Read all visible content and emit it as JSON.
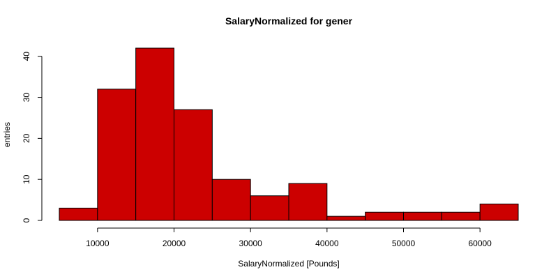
{
  "chart_data": {
    "type": "bar",
    "title": "SalaryNormalized for gener",
    "xlabel": "SalaryNormalized [Pounds]",
    "ylabel": "entries",
    "bins": [
      {
        "start": 5000,
        "end": 10000,
        "count": 3
      },
      {
        "start": 10000,
        "end": 15000,
        "count": 32
      },
      {
        "start": 15000,
        "end": 20000,
        "count": 42
      },
      {
        "start": 20000,
        "end": 25000,
        "count": 27
      },
      {
        "start": 25000,
        "end": 30000,
        "count": 10
      },
      {
        "start": 30000,
        "end": 35000,
        "count": 6
      },
      {
        "start": 35000,
        "end": 40000,
        "count": 9
      },
      {
        "start": 40000,
        "end": 45000,
        "count": 1
      },
      {
        "start": 45000,
        "end": 50000,
        "count": 2
      },
      {
        "start": 50000,
        "end": 55000,
        "count": 2
      },
      {
        "start": 55000,
        "end": 60000,
        "count": 2
      },
      {
        "start": 60000,
        "end": 65000,
        "count": 4
      }
    ],
    "xlim": [
      5000,
      65000
    ],
    "ylim": [
      0,
      42
    ],
    "x_ticks": [
      "10000",
      "20000",
      "30000",
      "40000",
      "50000",
      "60000"
    ],
    "y_ticks": [
      "0",
      "10",
      "20",
      "30",
      "40"
    ],
    "grid": false,
    "bar_color": "#cc0000",
    "edge_color": "#000000"
  }
}
